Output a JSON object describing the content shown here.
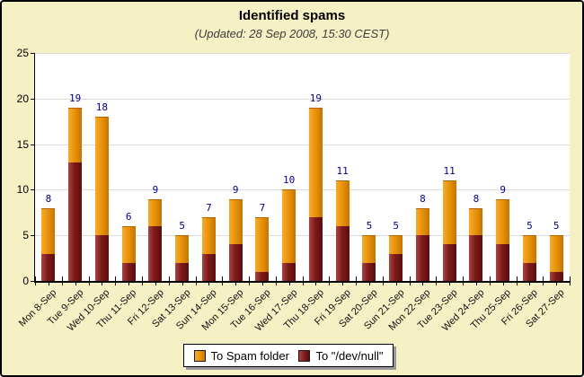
{
  "title": "Identified spams",
  "subtitle": "(Updated: 28 Sep 2008, 15:30 CEST)",
  "colors": {
    "background": "#F6F1C4",
    "plot_background": "#FFFFFF",
    "gridline": "#DCDCDC",
    "value_label": "#00008B",
    "spam_folder_orange": "#E8940A",
    "devnull_maroon": "#7D1A1A"
  },
  "legend": {
    "items": [
      {
        "label": "To Spam folder",
        "color": "#E8940A"
      },
      {
        "label": "To \"/dev/null\"",
        "color": "#7D1A1A"
      }
    ]
  },
  "chart_data": {
    "type": "bar",
    "stacked": true,
    "title": "Identified spams",
    "subtitle": "(Updated: 28 Sep 2008, 15:30 CEST)",
    "categories": [
      "Mon 8-Sep",
      "Tue 9-Sep",
      "Wed 10-Sep",
      "Thu 11-Sep",
      "Fri 12-Sep",
      "Sat 13-Sep",
      "Sun 14-Sep",
      "Mon 15-Sep",
      "Tue 16-Sep",
      "Wed 17-Sep",
      "Thu 18-Sep",
      "Fri 19-Sep",
      "Sat 20-Sep",
      "Sun 21-Sep",
      "Mon 22-Sep",
      "Tue 23-Sep",
      "Wed 24-Sep",
      "Thu 25-Sep",
      "Fri 26-Sep",
      "Sat 27-Sep"
    ],
    "series": [
      {
        "name": "To Spam folder",
        "color_start": "#F7AB2A",
        "color_mid": "#E8940A",
        "color_end": "#C77400",
        "values": [
          5,
          6,
          13,
          4,
          3,
          3,
          4,
          5,
          6,
          8,
          12,
          5,
          3,
          2,
          3,
          7,
          3,
          5,
          3,
          4
        ]
      },
      {
        "name": "To \"/dev/null\"",
        "color_start": "#A84444",
        "color_mid": "#7D1A1A",
        "color_end": "#5C0D0D",
        "values": [
          3,
          13,
          5,
          2,
          6,
          2,
          3,
          4,
          1,
          2,
          7,
          6,
          2,
          3,
          5,
          4,
          5,
          4,
          2,
          1
        ]
      }
    ],
    "totals": [
      8,
      19,
      18,
      6,
      9,
      5,
      7,
      9,
      7,
      10,
      19,
      11,
      5,
      5,
      8,
      11,
      8,
      9,
      5,
      5
    ],
    "ylim": [
      0,
      25
    ],
    "ytick_step": 5,
    "grid": true,
    "legend_position": "bottom",
    "bar_value_labels": true
  }
}
